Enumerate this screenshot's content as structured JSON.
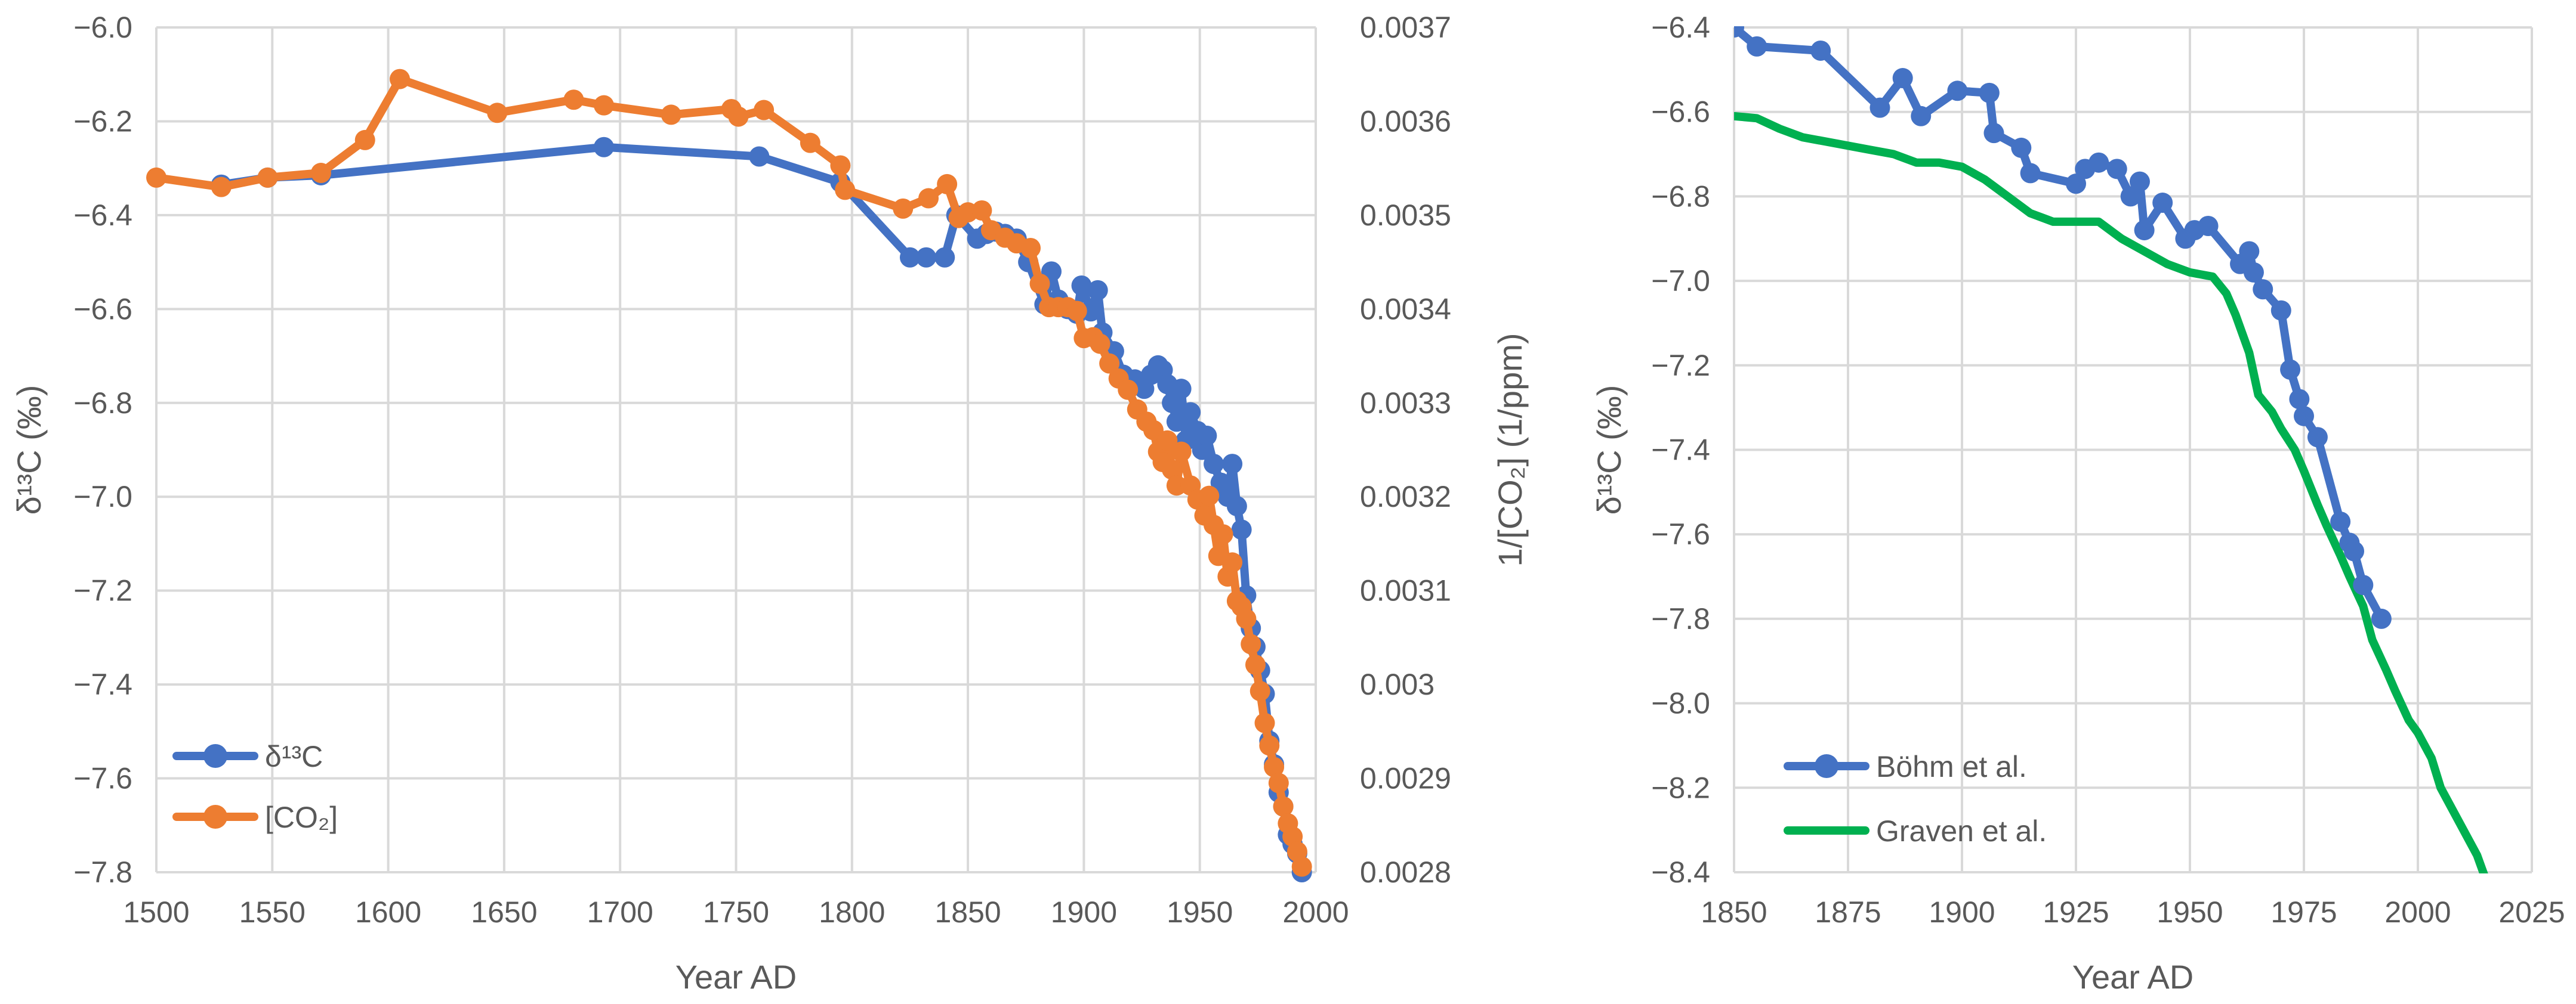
{
  "chart_data": [
    {
      "type": "line",
      "xlabel": "Year AD",
      "ylabel": "δ¹³C (‰)",
      "y2label": "1/[CO₂] (1/ppm)",
      "xlim": [
        1500,
        2000
      ],
      "xticks": [
        1500,
        1550,
        1600,
        1650,
        1700,
        1750,
        1800,
        1850,
        1900,
        1950,
        2000
      ],
      "ylim": [
        -7.8,
        -6.0
      ],
      "yticks": [
        "−6.0",
        "−6.2",
        "−6.4",
        "−6.6",
        "−6.8",
        "−7.0",
        "−7.2",
        "−7.4",
        "−7.6",
        "−7.8"
      ],
      "y2lim": [
        0.0028,
        0.0037
      ],
      "y2ticks": [
        "0.0037",
        "0.0036",
        "0.0035",
        "0.0034",
        "0.0033",
        "0.0032",
        "0.0031",
        "0.003",
        "0.0029",
        "0.0028"
      ],
      "grid": true,
      "legend_position": "bottom-left",
      "series": [
        {
          "name": "δ¹³C",
          "axis": "left",
          "color": "#4472c4",
          "x": [
            1528,
            1548,
            1571,
            1693,
            1760,
            1795,
            1825,
            1832,
            1840,
            1845,
            1854,
            1858,
            1862,
            1866,
            1871,
            1876,
            1883,
            1886,
            1889,
            1893,
            1897,
            1899,
            1903,
            1906,
            1908,
            1913,
            1917,
            1922,
            1926,
            1929,
            1932,
            1934,
            1936,
            1938,
            1940,
            1942,
            1944,
            1946,
            1949,
            1951,
            1953,
            1956,
            1959,
            1962,
            1964,
            1966,
            1968,
            1970,
            1972,
            1974,
            1976,
            1978,
            1980,
            1982,
            1984,
            1986,
            1988,
            1990,
            1992,
            1994
          ],
          "values": [
            -6.335,
            -6.32,
            -6.315,
            -6.255,
            -6.275,
            -6.33,
            -6.49,
            -6.49,
            -6.49,
            -6.4,
            -6.45,
            -6.44,
            -6.435,
            -6.44,
            -6.45,
            -6.5,
            -6.59,
            -6.52,
            -6.58,
            -6.6,
            -6.61,
            -6.55,
            -6.605,
            -6.56,
            -6.65,
            -6.69,
            -6.74,
            -6.75,
            -6.77,
            -6.74,
            -6.72,
            -6.73,
            -6.76,
            -6.8,
            -6.84,
            -6.77,
            -6.88,
            -6.82,
            -6.86,
            -6.9,
            -6.87,
            -6.93,
            -6.97,
            -7.0,
            -6.93,
            -7.02,
            -7.07,
            -7.21,
            -7.28,
            -7.32,
            -7.37,
            -7.42,
            -7.52,
            -7.57,
            -7.63,
            -7.66,
            -7.72,
            -7.74,
            -7.76,
            -7.8
          ]
        },
        {
          "name": "[CO₂]",
          "axis": "right",
          "color": "#ed7d31",
          "x": [
            1500,
            1528,
            1548,
            1571,
            1590,
            1605,
            1647,
            1680,
            1693,
            1722,
            1748,
            1751,
            1762,
            1782,
            1795,
            1797,
            1822,
            1833,
            1841,
            1846,
            1850,
            1856,
            1860,
            1866,
            1871,
            1877,
            1881,
            1885,
            1889,
            1893,
            1897,
            1900,
            1904,
            1907,
            1911,
            1915,
            1919,
            1923,
            1927,
            1930,
            1932,
            1934,
            1936,
            1938,
            1940,
            1942,
            1946,
            1949,
            1952,
            1954,
            1956,
            1958,
            1960,
            1962,
            1964,
            1966,
            1968,
            1970,
            1972,
            1974,
            1976,
            1978,
            1980,
            1982,
            1984,
            1986,
            1988,
            1990,
            1992,
            1994
          ],
          "values": [
            0.00354,
            0.00353,
            0.00354,
            0.003545,
            0.00358,
            0.003645,
            0.003609,
            0.003623,
            0.003617,
            0.003607,
            0.003613,
            0.003605,
            0.003612,
            0.003577,
            0.003553,
            0.003527,
            0.003507,
            0.003518,
            0.003533,
            0.003497,
            0.003503,
            0.003505,
            0.003484,
            0.003476,
            0.00347,
            0.003465,
            0.003427,
            0.003402,
            0.003402,
            0.003402,
            0.003398,
            0.003369,
            0.00337,
            0.003363,
            0.003342,
            0.003326,
            0.003314,
            0.003293,
            0.00328,
            0.003271,
            0.003248,
            0.003237,
            0.00326,
            0.003229,
            0.003212,
            0.003248,
            0.003212,
            0.003197,
            0.00318,
            0.003201,
            0.00317,
            0.003137,
            0.00316,
            0.003115,
            0.00313,
            0.003089,
            0.003083,
            0.00307,
            0.003043,
            0.003021,
            0.002993,
            0.002959,
            0.002935,
            0.002912,
            0.002895,
            0.00287,
            0.002852,
            0.002838,
            0.002822,
            0.002806
          ]
        }
      ]
    },
    {
      "type": "line",
      "xlabel": "Year AD",
      "ylabel": "δ¹³C (‰)",
      "xlim": [
        1850,
        2025
      ],
      "xticks": [
        1850,
        1875,
        1900,
        1925,
        1950,
        1975,
        2000,
        2025
      ],
      "ylim": [
        -8.4,
        -6.4
      ],
      "yticks": [
        "−6.4",
        "−6.6",
        "−6.8",
        "−7.0",
        "−7.2",
        "−7.4",
        "−7.6",
        "−7.8",
        "−8.0",
        "−8.2",
        "−8.4"
      ],
      "grid": true,
      "legend_position": "bottom-left",
      "series": [
        {
          "name": "Böhm et al.",
          "color": "#4472c4",
          "markers": true,
          "x": [
            1850,
            1855,
            1869,
            1882,
            1887,
            1891,
            1899,
            1906,
            1907,
            1913,
            1915,
            1925,
            1927,
            1930,
            1934,
            1937,
            1939,
            1940,
            1944,
            1949,
            1951,
            1954,
            1961,
            1963,
            1964,
            1966,
            1970,
            1972,
            1974,
            1975,
            1978,
            1983,
            1985,
            1986,
            1988,
            1992
          ],
          "values": [
            -6.4,
            -6.445,
            -6.455,
            -6.59,
            -6.52,
            -6.61,
            -6.55,
            -6.555,
            -6.65,
            -6.685,
            -6.745,
            -6.77,
            -6.735,
            -6.72,
            -6.735,
            -6.8,
            -6.765,
            -6.88,
            -6.815,
            -6.9,
            -6.88,
            -6.87,
            -6.96,
            -6.93,
            -6.98,
            -7.02,
            -7.07,
            -7.21,
            -7.28,
            -7.32,
            -7.37,
            -7.57,
            -7.62,
            -7.64,
            -7.72,
            -7.8
          ]
        },
        {
          "name": "Graven et al.",
          "color": "#00b050",
          "markers": false,
          "x": [
            1850,
            1855,
            1860,
            1865,
            1870,
            1875,
            1880,
            1885,
            1890,
            1895,
            1900,
            1905,
            1910,
            1915,
            1920,
            1925,
            1930,
            1935,
            1940,
            1945,
            1950,
            1955,
            1958,
            1960,
            1963,
            1965,
            1968,
            1970,
            1973,
            1975,
            1978,
            1980,
            1983,
            1985,
            1988,
            1990,
            1993,
            1995,
            1998,
            2000,
            2003,
            2005,
            2008,
            2010,
            2013,
            2015
          ],
          "values": [
            -6.61,
            -6.615,
            -6.64,
            -6.66,
            -6.67,
            -6.68,
            -6.69,
            -6.7,
            -6.72,
            -6.72,
            -6.73,
            -6.76,
            -6.8,
            -6.84,
            -6.86,
            -6.86,
            -6.86,
            -6.9,
            -6.93,
            -6.96,
            -6.98,
            -6.99,
            -7.03,
            -7.08,
            -7.17,
            -7.27,
            -7.31,
            -7.35,
            -7.4,
            -7.45,
            -7.53,
            -7.58,
            -7.65,
            -7.7,
            -7.77,
            -7.85,
            -7.92,
            -7.97,
            -8.04,
            -8.07,
            -8.13,
            -8.2,
            -8.26,
            -8.3,
            -8.36,
            -8.42
          ]
        }
      ]
    }
  ]
}
